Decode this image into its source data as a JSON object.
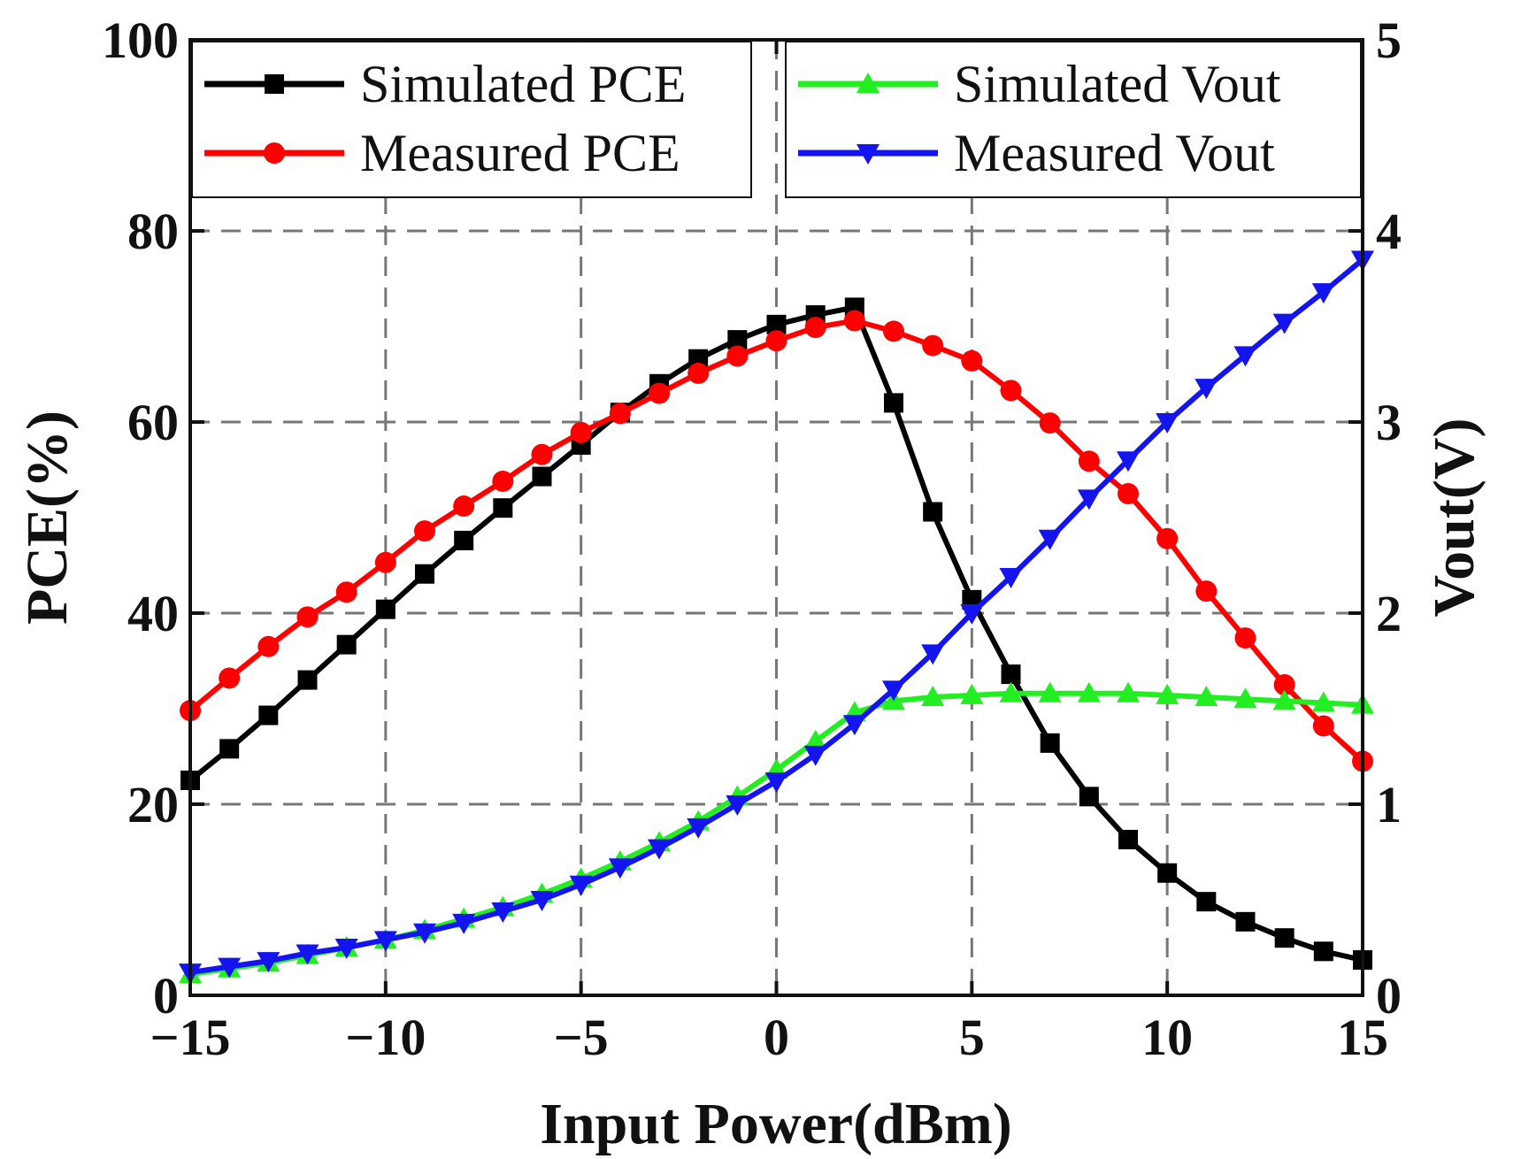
{
  "chart_data": {
    "type": "line",
    "title": "",
    "xlabel": "Input Power(dBm)",
    "ylabel": "PCE(%)",
    "y2label": "Vout(V)",
    "xlim": [
      -15,
      15
    ],
    "ylim": [
      0,
      100
    ],
    "y2lim": [
      0,
      5
    ],
    "grid": true,
    "xticks": [
      -15,
      -10,
      -5,
      0,
      5,
      10,
      15
    ],
    "xtick_labels": [
      "−15",
      "−10",
      "−5",
      "0",
      "5",
      "10",
      "15"
    ],
    "yticks": [
      0,
      20,
      40,
      60,
      80,
      100
    ],
    "ytick_labels": [
      "0",
      "20",
      "40",
      "60",
      "80",
      "100"
    ],
    "y2ticks": [
      0,
      1,
      2,
      3,
      4,
      5
    ],
    "y2tick_labels": [
      "0",
      "1",
      "2",
      "3",
      "4",
      "5"
    ],
    "legend_position": "top (two boxes: left and right)",
    "x": [
      -15,
      -14,
      -13,
      -12,
      -11,
      -10,
      -9,
      -8,
      -7,
      -6,
      -5,
      -4,
      -3,
      -2,
      -1,
      0,
      1,
      2,
      3,
      4,
      5,
      6,
      7,
      8,
      9,
      10,
      11,
      12,
      13,
      14,
      15
    ],
    "series": [
      {
        "name": "Simulated PCE",
        "axis": "left",
        "color": "#000000",
        "marker": "square",
        "values": [
          22.5,
          25.8,
          29.3,
          33.0,
          36.7,
          40.4,
          44.1,
          47.6,
          51.0,
          54.3,
          57.6,
          61.0,
          64.0,
          66.6,
          68.6,
          70.2,
          71.2,
          72.0,
          62.0,
          50.6,
          41.4,
          33.6,
          26.4,
          20.8,
          16.3,
          12.8,
          9.8,
          7.7,
          6.0,
          4.6,
          3.7
        ]
      },
      {
        "name": "Measured PCE",
        "axis": "left",
        "color": "#ff0000",
        "marker": "circle",
        "values": [
          29.8,
          33.2,
          36.5,
          39.6,
          42.2,
          45.3,
          48.6,
          51.2,
          53.8,
          56.6,
          58.9,
          60.9,
          63.0,
          65.1,
          66.9,
          68.5,
          69.9,
          70.6,
          69.5,
          68.0,
          66.4,
          63.3,
          59.9,
          55.9,
          52.5,
          47.8,
          42.3,
          37.4,
          32.5,
          28.2,
          24.5
        ]
      },
      {
        "name": "Simulated Vout",
        "axis": "right",
        "color": "#22ee22",
        "marker": "triangle-up",
        "values": [
          0.11,
          0.14,
          0.17,
          0.21,
          0.25,
          0.29,
          0.34,
          0.4,
          0.46,
          0.53,
          0.61,
          0.7,
          0.8,
          0.91,
          1.04,
          1.18,
          1.33,
          1.48,
          1.54,
          1.56,
          1.57,
          1.58,
          1.58,
          1.58,
          1.58,
          1.57,
          1.56,
          1.55,
          1.54,
          1.53,
          1.52
        ]
      },
      {
        "name": "Measured Vout",
        "axis": "right",
        "color": "#1414ee",
        "marker": "triangle-down",
        "values": [
          0.12,
          0.15,
          0.18,
          0.22,
          0.25,
          0.29,
          0.33,
          0.38,
          0.44,
          0.5,
          0.58,
          0.67,
          0.77,
          0.88,
          1.0,
          1.12,
          1.26,
          1.42,
          1.6,
          1.79,
          2.0,
          2.19,
          2.39,
          2.6,
          2.8,
          3.0,
          3.18,
          3.35,
          3.52,
          3.68,
          3.85
        ]
      }
    ],
    "legend_left": [
      "Simulated PCE",
      "Measured PCE"
    ],
    "legend_right": [
      "Simulated Vout",
      "Measured Vout"
    ]
  }
}
